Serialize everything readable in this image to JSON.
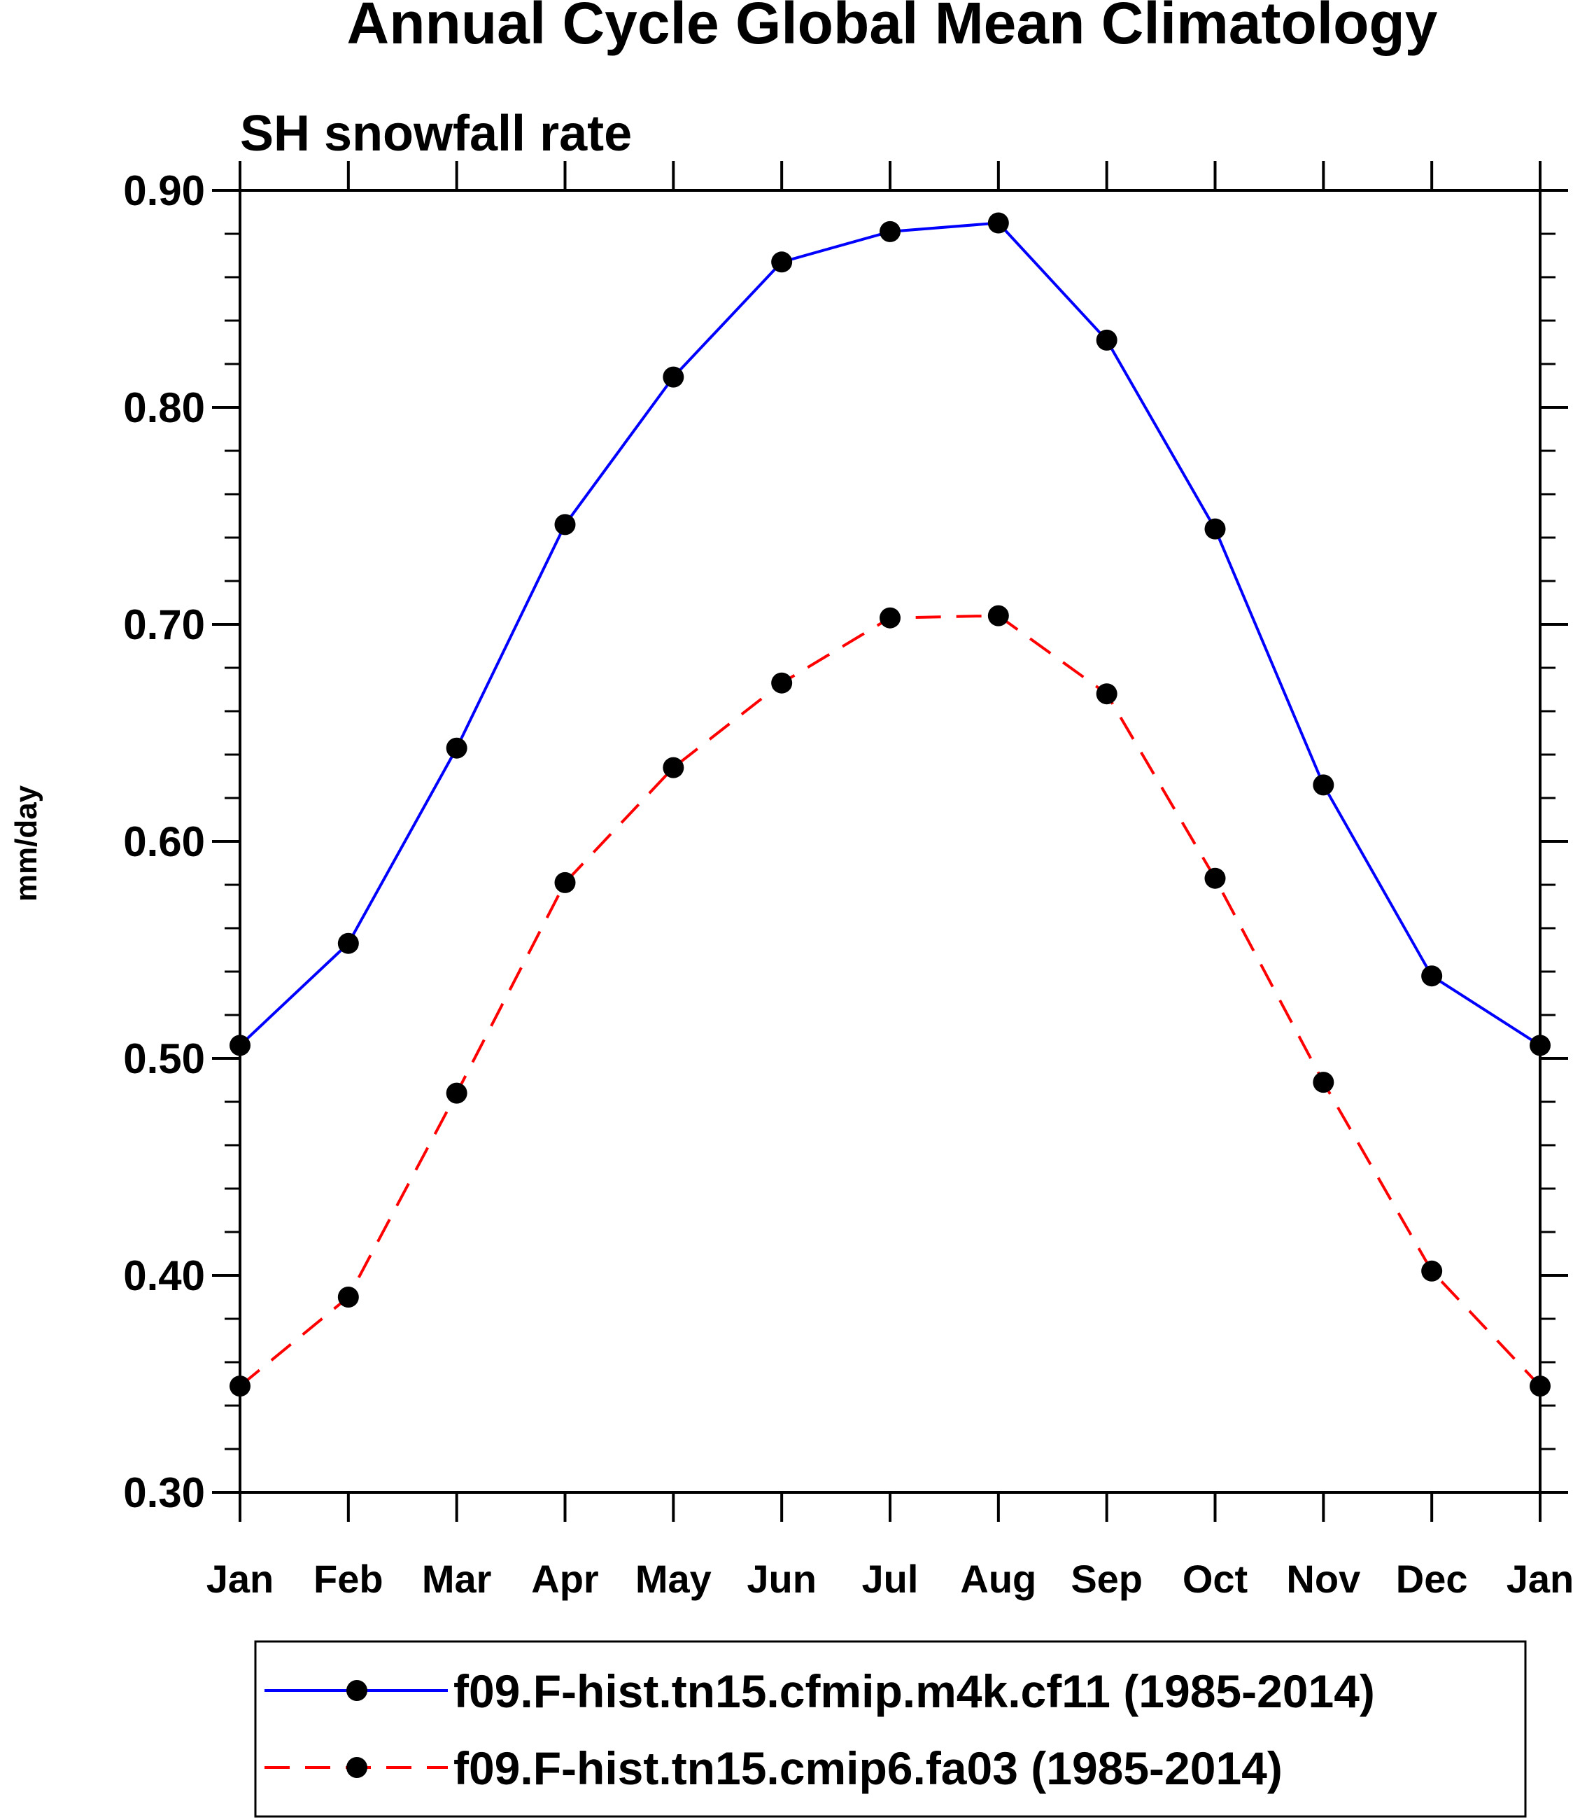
{
  "chart_data": {
    "type": "line",
    "title": "Annual Cycle Global Mean Climatology",
    "subtitle": "SH snowfall rate",
    "xlabel": "",
    "ylabel": "mm/day",
    "categories": [
      "Jan",
      "Feb",
      "Mar",
      "Apr",
      "May",
      "Jun",
      "Jul",
      "Aug",
      "Sep",
      "Oct",
      "Nov",
      "Dec",
      "Jan"
    ],
    "ylim": [
      0.3,
      0.9
    ],
    "yticks": [
      "0.30",
      "0.40",
      "0.50",
      "0.60",
      "0.70",
      "0.80",
      "0.90"
    ],
    "grid": false,
    "legend_position": "bottom",
    "series": [
      {
        "name": "f09.F-hist.tn15.cfmip.m4k.cf11 (1985-2014)",
        "color": "#0000ff",
        "dash": "solid",
        "values": [
          0.506,
          0.553,
          0.643,
          0.746,
          0.814,
          0.867,
          0.881,
          0.885,
          0.831,
          0.744,
          0.626,
          0.538,
          0.506
        ]
      },
      {
        "name": "f09.F-hist.tn15.cmip6.fa03 (1985-2014)",
        "color": "#ff0000",
        "dash": "dashed",
        "values": [
          0.349,
          0.39,
          0.484,
          0.581,
          0.634,
          0.673,
          0.703,
          0.704,
          0.668,
          0.583,
          0.489,
          0.402,
          0.349
        ]
      }
    ]
  }
}
